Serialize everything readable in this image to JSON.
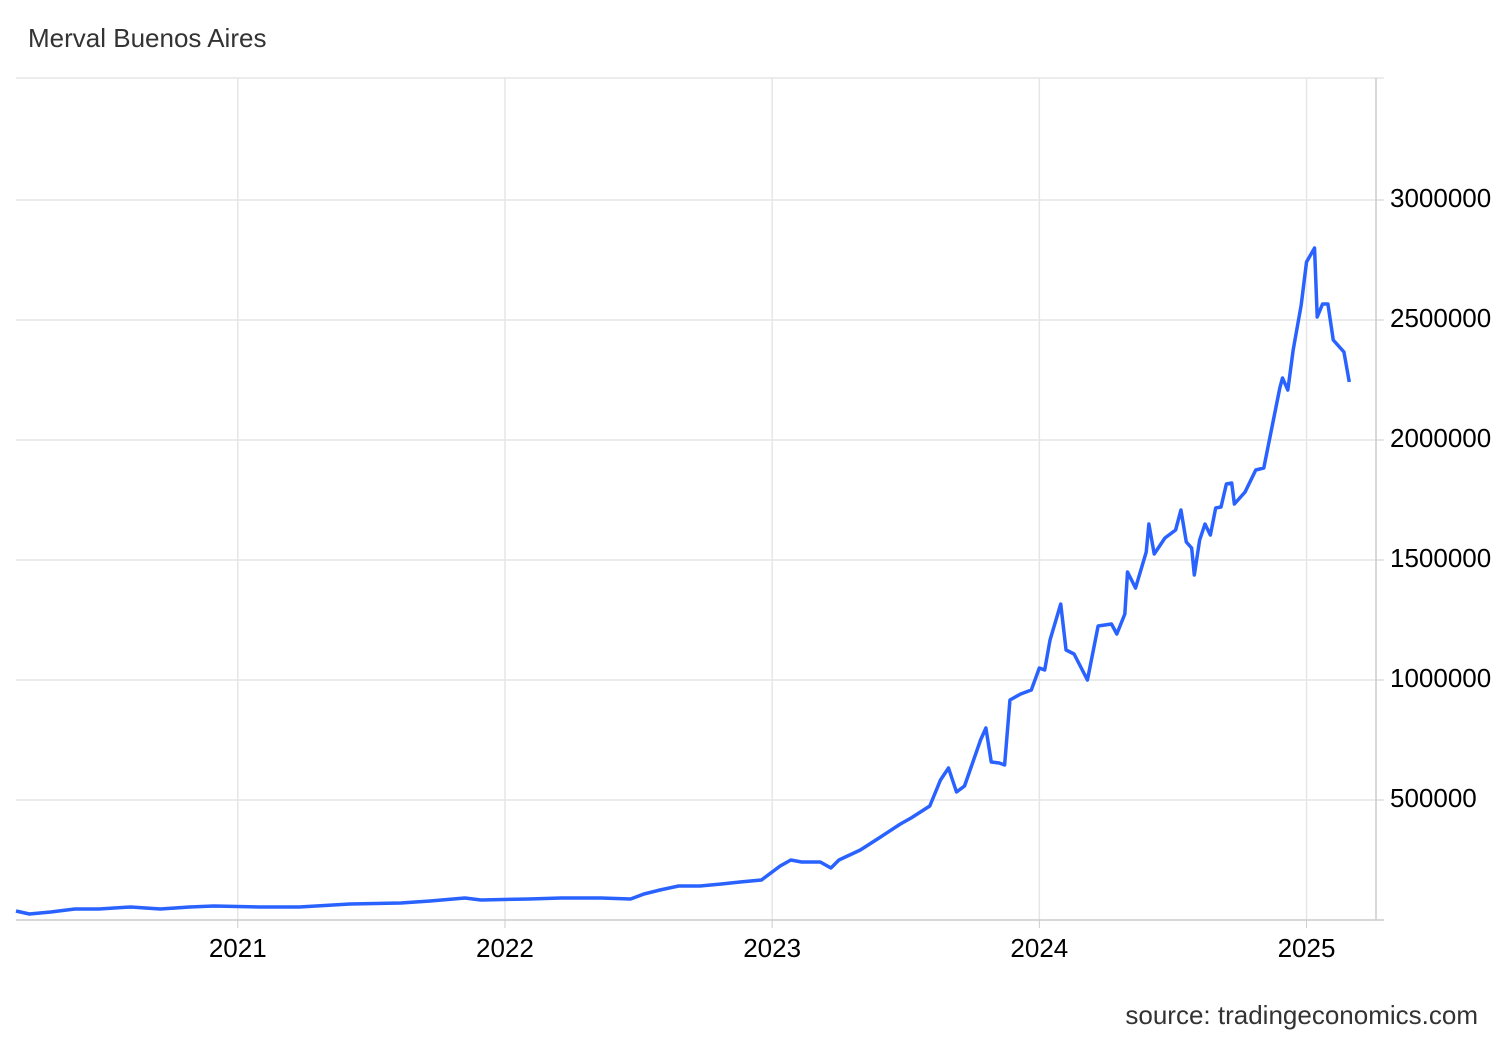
{
  "chart_data": {
    "type": "line",
    "title": "Merval Buenos Aires",
    "source": "source: tradingeconomics.com",
    "x": [
      2020.17,
      2020.22,
      2020.3,
      2020.39,
      2020.48,
      2020.6,
      2020.71,
      2020.82,
      2020.91,
      2021.08,
      2021.23,
      2021.42,
      2021.61,
      2021.72,
      2021.85,
      2021.91,
      2022.09,
      2022.21,
      2022.36,
      2022.47,
      2022.52,
      2022.58,
      2022.65,
      2022.73,
      2022.81,
      2022.88,
      2022.96,
      2023.03,
      2023.07,
      2023.11,
      2023.18,
      2023.22,
      2023.25,
      2023.33,
      2023.4,
      2023.48,
      2023.52,
      2023.59,
      2023.63,
      2023.66,
      2023.69,
      2023.72,
      2023.78,
      2023.8,
      2023.82,
      2023.85,
      2023.87,
      2023.89,
      2023.93,
      2023.97,
      2024.0,
      2024.02,
      2024.04,
      2024.08,
      2024.1,
      2024.13,
      2024.18,
      2024.22,
      2024.27,
      2024.29,
      2024.32,
      2024.33,
      2024.36,
      2024.4,
      2024.41,
      2024.43,
      2024.47,
      2024.51,
      2024.53,
      2024.55,
      2024.57,
      2024.58,
      2024.6,
      2024.62,
      2024.64,
      2024.66,
      2024.68,
      2024.7,
      2024.72,
      2024.73,
      2024.77,
      2024.81,
      2024.84,
      2024.87,
      2024.9,
      2024.91,
      2024.93,
      2024.95,
      2024.98,
      2025.0,
      2025.03,
      2025.04,
      2025.06,
      2025.08,
      2025.1,
      2025.14,
      2025.16
    ],
    "series": [
      {
        "name": "Merval Buenos Aires",
        "color": "#2962ff",
        "values": [
          37500,
          25000,
          33333,
          45833,
          45833,
          54167,
          45833,
          54167,
          58333,
          54167,
          54167,
          66667,
          70833,
          79167,
          91667,
          83333,
          87500,
          91667,
          91667,
          87500,
          108333,
          125000,
          141667,
          141667,
          150000,
          158333,
          166667,
          225000,
          250000,
          241667,
          241667,
          216667,
          250000,
          291667,
          341667,
          400000,
          425000,
          475000,
          583333,
          633333,
          533333,
          558333,
          750000,
          800000,
          658333,
          654167,
          645833,
          916667,
          941667,
          958333,
          1050000,
          1041667,
          1166667,
          1316667,
          1125000,
          1108333,
          1000000,
          1225000,
          1233333,
          1191667,
          1275000,
          1450000,
          1383333,
          1533333,
          1650000,
          1525000,
          1591667,
          1625000,
          1708333,
          1575000,
          1550000,
          1437500,
          1583333,
          1650000,
          1604167,
          1716667,
          1720833,
          1816667,
          1820833,
          1733333,
          1783333,
          1875000,
          1883333,
          2050000,
          2216667,
          2258333,
          2208333,
          2375000,
          2562500,
          2741667,
          2800000,
          2512500,
          2566667,
          2566667,
          2416667,
          2366667,
          2241667
        ]
      }
    ],
    "xlim": [
      2020.17,
      2025.26
    ],
    "xticks": [
      2021,
      2022,
      2023,
      2024,
      2025
    ],
    "ylim": [
      0,
      3500000
    ],
    "yticks": [
      500000,
      1000000,
      1500000,
      2000000,
      2500000,
      3000000
    ],
    "grid": true
  }
}
